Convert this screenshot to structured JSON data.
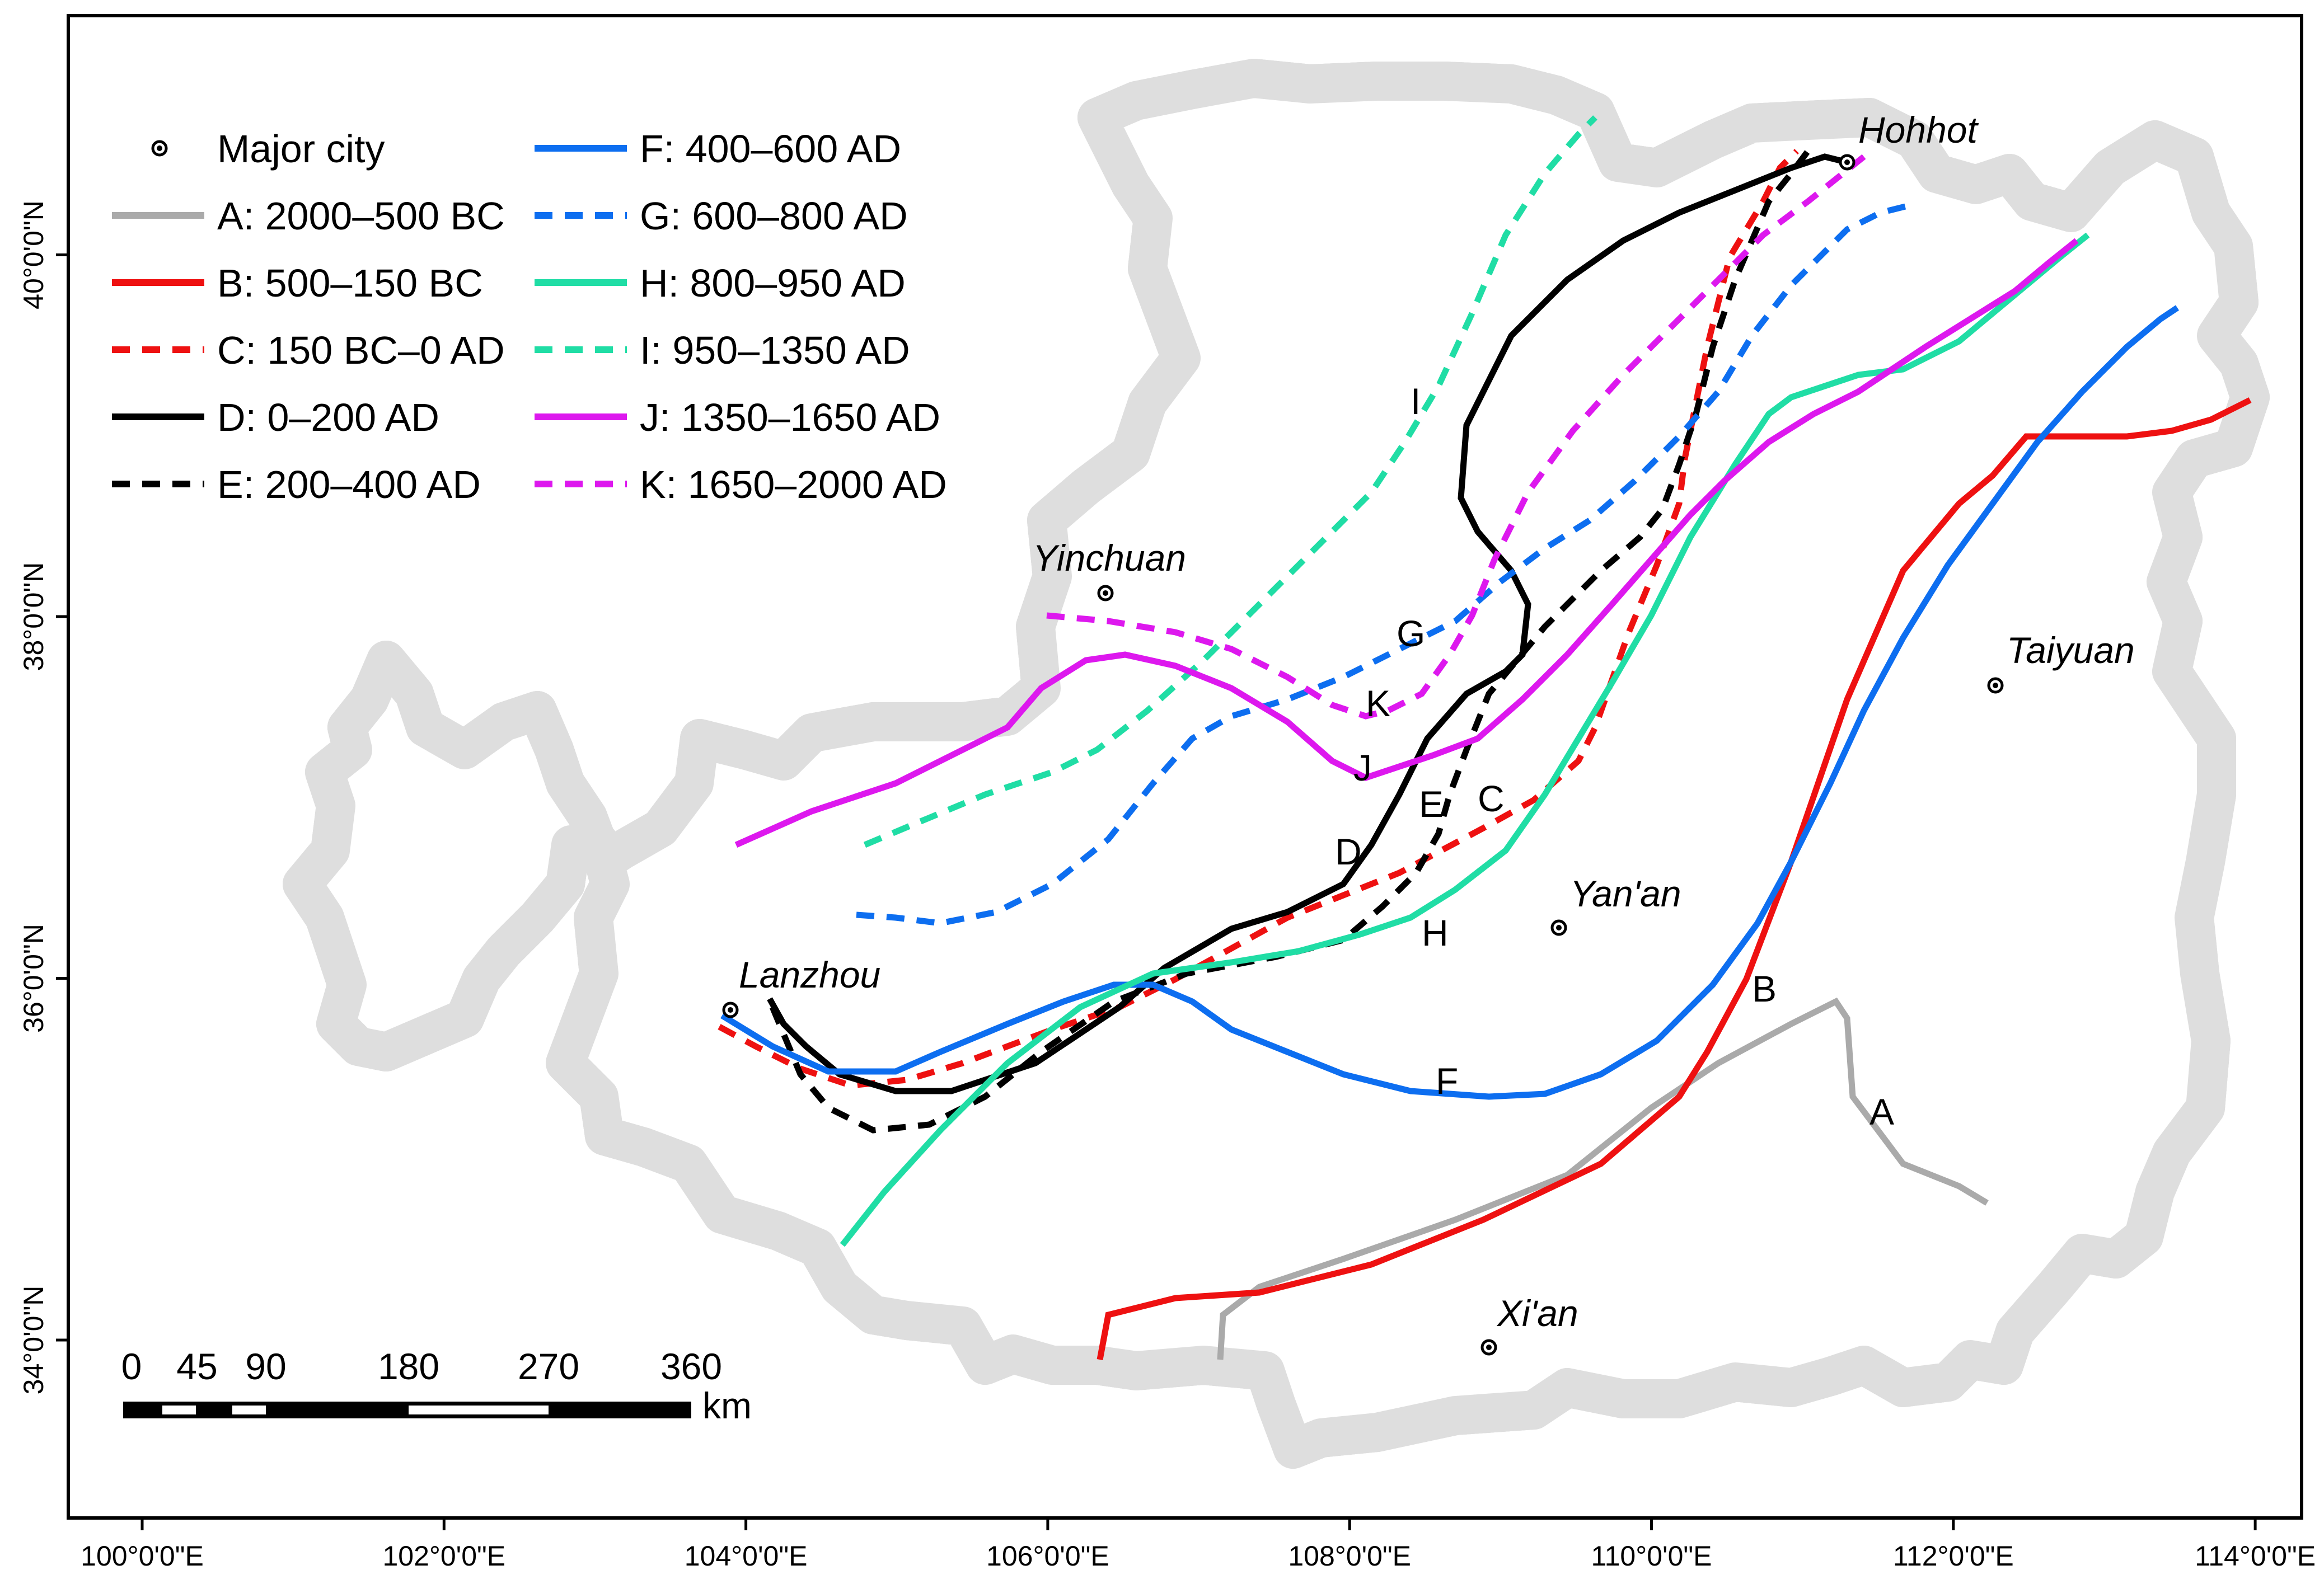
{
  "map": {
    "axes": {
      "x_ticks": [
        {
          "lon": 100,
          "label": "100°0'0\"E"
        },
        {
          "lon": 102,
          "label": "102°0'0\"E"
        },
        {
          "lon": 104,
          "label": "104°0'0\"E"
        },
        {
          "lon": 106,
          "label": "106°0'0\"E"
        },
        {
          "lon": 108,
          "label": "108°0'0\"E"
        },
        {
          "lon": 110,
          "label": "110°0'0\"E"
        },
        {
          "lon": 112,
          "label": "112°0'0\"E"
        },
        {
          "lon": 114,
          "label": "114°0'0\"E"
        }
      ],
      "y_ticks": [
        {
          "lat": 34,
          "label": "34°0'0\"N"
        },
        {
          "lat": 36,
          "label": "36°0'0\"N"
        },
        {
          "lat": 38,
          "label": "38°0'0\"N"
        },
        {
          "lat": 40,
          "label": "40°0'0\"N"
        }
      ]
    },
    "legend": {
      "major_city": "Major city",
      "lines": [
        {
          "id": "A",
          "label": "A: 2000–500 BC",
          "color": "#aaaaaa",
          "dashed": false
        },
        {
          "id": "B",
          "label": "B: 500–150 BC",
          "color": "#ee1111",
          "dashed": false
        },
        {
          "id": "C",
          "label": "C: 150 BC–0 AD",
          "color": "#ee1111",
          "dashed": true
        },
        {
          "id": "D",
          "label": "D: 0–200 AD",
          "color": "#000000",
          "dashed": false
        },
        {
          "id": "E",
          "label": "E: 200–400 AD",
          "color": "#000000",
          "dashed": true
        },
        {
          "id": "F",
          "label": "F: 400–600 AD",
          "color": "#0d6ef0",
          "dashed": false
        },
        {
          "id": "G",
          "label": "G: 600–800 AD",
          "color": "#0d6ef0",
          "dashed": true
        },
        {
          "id": "H",
          "label": "H: 800–950 AD",
          "color": "#20dda5",
          "dashed": false
        },
        {
          "id": "I",
          "label": "I: 950–1350 AD",
          "color": "#20dda5",
          "dashed": true
        },
        {
          "id": "J",
          "label": "J: 1350–1650 AD",
          "color": "#dd18ee",
          "dashed": false
        },
        {
          "id": "K",
          "label": "K: 1650–2000 AD",
          "color": "#dd18ee",
          "dashed": true
        }
      ]
    },
    "cities": [
      {
        "name": "Hohhot"
      },
      {
        "name": "Yinchuan"
      },
      {
        "name": "Taiyuan"
      },
      {
        "name": "Yan'an"
      },
      {
        "name": "Lanzhou"
      },
      {
        "name": "Xi'an"
      }
    ],
    "scale_bar": {
      "ticks": [
        "0",
        "45",
        "90",
        "180",
        "270",
        "360"
      ],
      "unit": "km"
    }
  }
}
